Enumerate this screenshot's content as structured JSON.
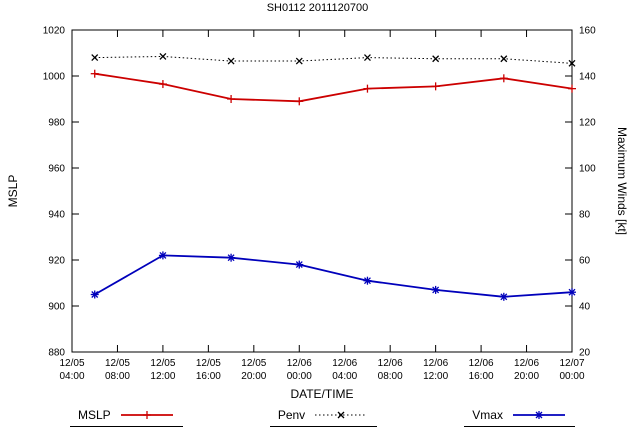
{
  "title": "SH0112 2011120700",
  "chart_data": {
    "type": "line",
    "title": "SH0112 2011120700",
    "xlabel": "DATE/TIME",
    "ylabel_left": "MSLP",
    "ylabel_right": "Maximum Winds [kt]",
    "ylim_left": [
      880,
      1020
    ],
    "ylim_right": [
      20,
      160
    ],
    "y_ticks_left": [
      880,
      900,
      920,
      940,
      960,
      980,
      1000,
      1020
    ],
    "y_ticks_right": [
      20,
      40,
      60,
      80,
      100,
      120,
      140,
      160
    ],
    "x_range_hours": [
      0,
      44
    ],
    "x_ticks": [
      {
        "hour": 0,
        "date": "12/05",
        "time": "04:00"
      },
      {
        "hour": 4,
        "date": "12/05",
        "time": "08:00"
      },
      {
        "hour": 8,
        "date": "12/05",
        "time": "12:00"
      },
      {
        "hour": 12,
        "date": "12/05",
        "time": "16:00"
      },
      {
        "hour": 16,
        "date": "12/05",
        "time": "20:00"
      },
      {
        "hour": 20,
        "date": "12/06",
        "time": "00:00"
      },
      {
        "hour": 24,
        "date": "12/06",
        "time": "04:00"
      },
      {
        "hour": 28,
        "date": "12/06",
        "time": "08:00"
      },
      {
        "hour": 32,
        "date": "12/06",
        "time": "12:00"
      },
      {
        "hour": 36,
        "date": "12/06",
        "time": "16:00"
      },
      {
        "hour": 40,
        "date": "12/06",
        "time": "20:00"
      },
      {
        "hour": 44,
        "date": "12/07",
        "time": "00:00"
      }
    ],
    "grid": false,
    "legend_position": "bottom",
    "series": [
      {
        "name": "MSLP",
        "axis": "left",
        "color": "#cc0000",
        "marker": "plus",
        "line_style": "solid",
        "x_hours": [
          2,
          8,
          14,
          20,
          26,
          32,
          38,
          44
        ],
        "values": [
          1001,
          996.5,
          990,
          989,
          994.5,
          995.5,
          999,
          994.5
        ]
      },
      {
        "name": "Penv",
        "axis": "left",
        "color": "#000000",
        "marker": "cross",
        "line_style": "dotted",
        "x_hours": [
          2,
          8,
          14,
          20,
          26,
          32,
          38,
          44
        ],
        "values": [
          1008,
          1008.5,
          1006.5,
          1006.5,
          1008,
          1007.5,
          1007.5,
          1005.5
        ]
      },
      {
        "name": "Vmax",
        "axis": "right",
        "color": "#0000bb",
        "marker": "asterisk",
        "line_style": "solid",
        "x_hours": [
          2,
          8,
          14,
          20,
          26,
          32,
          38,
          44
        ],
        "values": [
          45,
          62,
          61,
          58,
          51,
          47,
          44,
          46
        ]
      }
    ]
  }
}
